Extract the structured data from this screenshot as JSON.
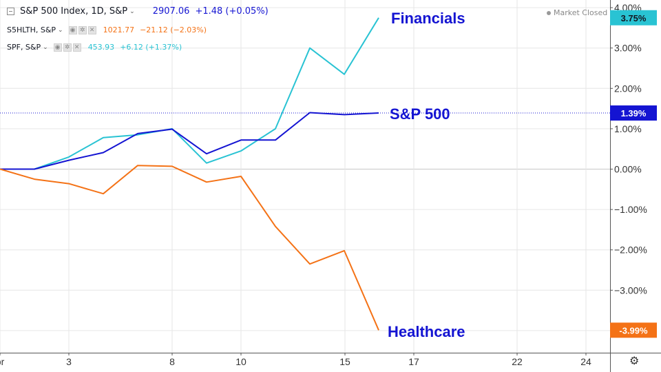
{
  "header": {
    "main_symbol": "S&P 500 Index, 1D, S&P",
    "main_last": "2907.06",
    "main_change": "+1.48 (+0.05%)",
    "row2_symbol": "S5HLTH, S&P",
    "row2_last": "1021.77",
    "row2_change": "−21.12 (−2.03%)",
    "row3_symbol": "SPF, S&P",
    "row3_last": "453.93",
    "row3_change": "+6.12 (+1.37%)",
    "market_status": "Market Closed"
  },
  "icons": {
    "collapse": "collapse-icon",
    "chevron": "chevron-down-icon",
    "settings": "gear-icon",
    "status_dot": "dot-icon"
  },
  "colors": {
    "sp500": "#1414d2",
    "financials": "#29c3d3",
    "healthcare": "#f47216",
    "grid": "#e6e6e6",
    "axis": "#555555"
  },
  "chart_data": {
    "type": "line",
    "x_ticks": [
      "pr",
      "3",
      "8",
      "10",
      "15",
      "17",
      "22",
      "24"
    ],
    "y_ticks": [
      "4.00%",
      "3.00%",
      "2.00%",
      "1.00%",
      "0.00%",
      "−1.00%",
      "−2.00%",
      "−3.00%"
    ],
    "ylim": [
      -4.2,
      4.2
    ],
    "grid": true,
    "series": [
      {
        "name": "Financials",
        "key": "financials",
        "tag": "3.75%",
        "values": [
          0.0,
          0.0,
          0.3,
          0.78,
          0.85,
          1.0,
          0.15,
          0.45,
          1.0,
          3.0,
          2.35,
          3.75
        ]
      },
      {
        "name": "S&P 500",
        "key": "sp500",
        "tag": "1.39%",
        "values": [
          0.0,
          0.0,
          0.22,
          0.41,
          0.88,
          0.99,
          0.38,
          0.72,
          0.72,
          1.4,
          1.35,
          1.39
        ]
      },
      {
        "name": "Healthcare",
        "key": "healthcare",
        "tag": "-3.99%",
        "values": [
          0.0,
          -0.25,
          -0.36,
          -0.61,
          0.09,
          0.07,
          -0.32,
          -0.18,
          -1.42,
          -2.35,
          -2.02,
          -3.99
        ]
      }
    ]
  }
}
